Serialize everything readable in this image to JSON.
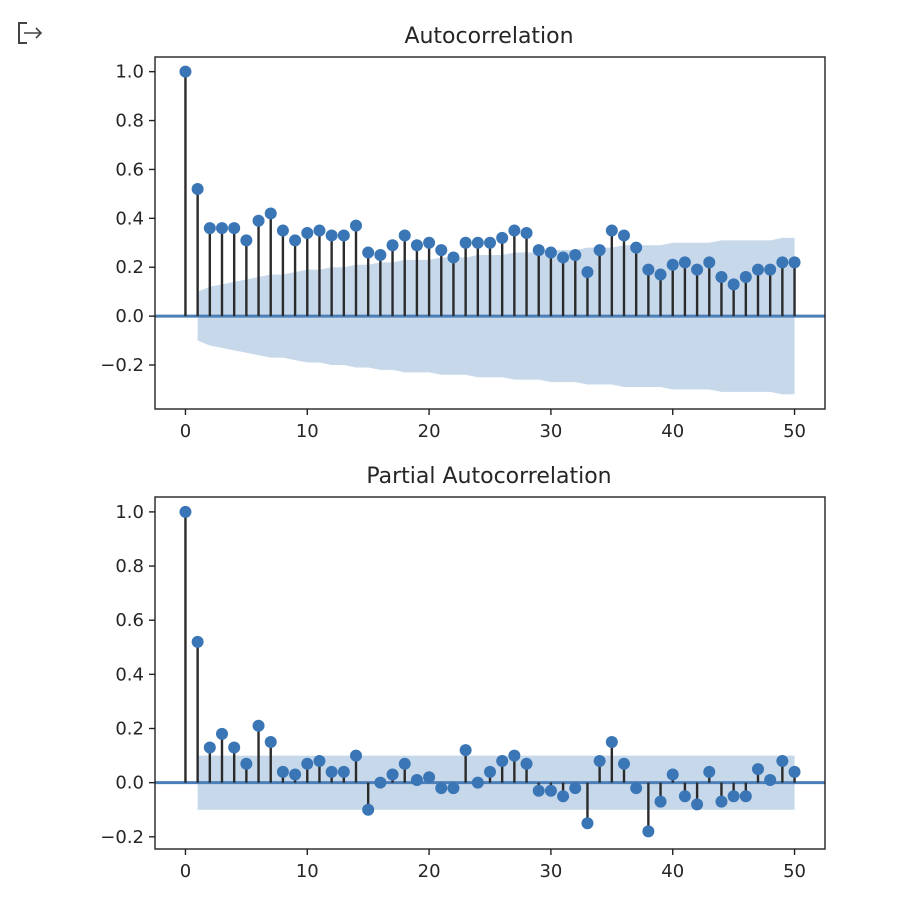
{
  "output_icon": "output-arrow-icon",
  "chart_data": [
    {
      "type": "stem",
      "title": "Autocorrelation",
      "xlabel": "",
      "ylabel": "",
      "xlim": [
        -2.5,
        52.5
      ],
      "ylim": [
        -0.38,
        1.06
      ],
      "xticks": [
        0,
        10,
        20,
        30,
        40,
        50
      ],
      "yticks": [
        -0.2,
        0.0,
        0.2,
        0.4,
        0.6,
        0.8,
        1.0
      ],
      "ytick_labels": [
        "−0.2",
        "0.0",
        "0.2",
        "0.4",
        "0.6",
        "0.8",
        "1.0"
      ],
      "x": [
        0,
        1,
        2,
        3,
        4,
        5,
        6,
        7,
        8,
        9,
        10,
        11,
        12,
        13,
        14,
        15,
        16,
        17,
        18,
        19,
        20,
        21,
        22,
        23,
        24,
        25,
        26,
        27,
        28,
        29,
        30,
        31,
        32,
        33,
        34,
        35,
        36,
        37,
        38,
        39,
        40,
        41,
        42,
        43,
        44,
        45,
        46,
        47,
        48,
        49,
        50
      ],
      "values": [
        1.0,
        0.52,
        0.36,
        0.36,
        0.36,
        0.31,
        0.39,
        0.42,
        0.35,
        0.31,
        0.34,
        0.35,
        0.33,
        0.33,
        0.37,
        0.26,
        0.25,
        0.29,
        0.33,
        0.29,
        0.3,
        0.27,
        0.24,
        0.3,
        0.3,
        0.3,
        0.32,
        0.35,
        0.34,
        0.27,
        0.26,
        0.24,
        0.25,
        0.18,
        0.27,
        0.35,
        0.33,
        0.28,
        0.19,
        0.17,
        0.21,
        0.22,
        0.19,
        0.22,
        0.16,
        0.13,
        0.16,
        0.19,
        0.19,
        0.22,
        0.22
      ],
      "confidence_band": {
        "x": [
          1,
          2,
          3,
          4,
          5,
          6,
          7,
          8,
          9,
          10,
          11,
          12,
          13,
          14,
          15,
          16,
          17,
          18,
          19,
          20,
          21,
          22,
          23,
          24,
          25,
          26,
          27,
          28,
          29,
          30,
          31,
          32,
          33,
          34,
          35,
          36,
          37,
          38,
          39,
          40,
          41,
          42,
          43,
          44,
          45,
          46,
          47,
          48,
          49,
          50
        ],
        "upper": [
          0.1,
          0.12,
          0.13,
          0.14,
          0.15,
          0.16,
          0.17,
          0.17,
          0.18,
          0.19,
          0.19,
          0.2,
          0.2,
          0.21,
          0.21,
          0.22,
          0.22,
          0.23,
          0.23,
          0.23,
          0.24,
          0.24,
          0.24,
          0.25,
          0.25,
          0.25,
          0.26,
          0.26,
          0.26,
          0.27,
          0.27,
          0.27,
          0.28,
          0.28,
          0.28,
          0.29,
          0.29,
          0.29,
          0.29,
          0.3,
          0.3,
          0.3,
          0.3,
          0.31,
          0.31,
          0.31,
          0.31,
          0.31,
          0.32,
          0.32
        ]
      },
      "grid": false,
      "legend": false
    },
    {
      "type": "stem",
      "title": "Partial Autocorrelation",
      "xlabel": "",
      "ylabel": "",
      "xlim": [
        -2.5,
        52.5
      ],
      "ylim": [
        -0.245,
        1.055
      ],
      "xticks": [
        0,
        10,
        20,
        30,
        40,
        50
      ],
      "yticks": [
        -0.2,
        0.0,
        0.2,
        0.4,
        0.6,
        0.8,
        1.0
      ],
      "ytick_labels": [
        "−0.2",
        "0.0",
        "0.2",
        "0.4",
        "0.6",
        "0.8",
        "1.0"
      ],
      "x": [
        0,
        1,
        2,
        3,
        4,
        5,
        6,
        7,
        8,
        9,
        10,
        11,
        12,
        13,
        14,
        15,
        16,
        17,
        18,
        19,
        20,
        21,
        22,
        23,
        24,
        25,
        26,
        27,
        28,
        29,
        30,
        31,
        32,
        33,
        34,
        35,
        36,
        37,
        38,
        39,
        40,
        41,
        42,
        43,
        44,
        45,
        46,
        47,
        48,
        49,
        50
      ],
      "values": [
        1.0,
        0.52,
        0.13,
        0.18,
        0.13,
        0.07,
        0.21,
        0.15,
        0.04,
        0.03,
        0.07,
        0.08,
        0.04,
        0.04,
        0.1,
        -0.1,
        0.0,
        0.03,
        0.07,
        0.01,
        0.02,
        -0.02,
        -0.02,
        0.12,
        0.0,
        0.04,
        0.08,
        0.1,
        0.07,
        -0.03,
        -0.03,
        -0.05,
        -0.02,
        -0.15,
        0.08,
        0.15,
        0.07,
        -0.02,
        -0.18,
        -0.07,
        0.03,
        -0.05,
        -0.08,
        0.04,
        -0.07,
        -0.05,
        -0.05,
        0.05,
        0.01,
        0.08,
        0.04
      ],
      "confidence_band": {
        "x": [
          1,
          50
        ],
        "upper": [
          0.1,
          0.1
        ]
      },
      "grid": false,
      "legend": false
    }
  ]
}
